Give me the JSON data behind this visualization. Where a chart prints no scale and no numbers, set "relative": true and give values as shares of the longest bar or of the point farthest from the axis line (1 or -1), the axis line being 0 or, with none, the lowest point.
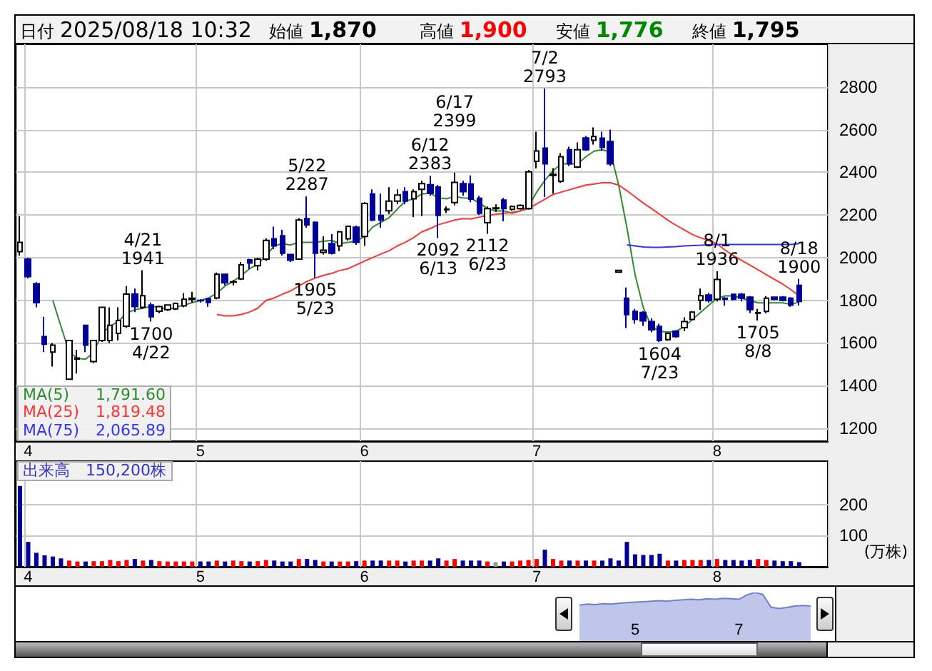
{
  "chart_data": [
    {
      "type": "candlestick",
      "categories": [
        null,
        "4",
        null,
        null,
        null,
        null,
        null,
        null,
        null,
        null,
        null,
        null,
        null,
        null,
        null,
        null,
        null,
        null,
        null,
        null,
        null,
        null,
        "5",
        null,
        null,
        null,
        null,
        null,
        null,
        null,
        null,
        null,
        null,
        null,
        null,
        null,
        null,
        null,
        null,
        null,
        null,
        null,
        "6",
        null,
        null,
        null,
        null,
        null,
        null,
        null,
        null,
        null,
        null,
        null,
        null,
        null,
        null,
        null,
        null,
        null,
        null,
        null,
        null,
        "7",
        null,
        null,
        null,
        null,
        null,
        null,
        null,
        null,
        null,
        null,
        null,
        null,
        null,
        null,
        null,
        null,
        null,
        null,
        null,
        null,
        null,
        "8",
        null,
        null,
        null,
        null,
        null,
        null,
        null,
        null,
        null,
        null
      ],
      "series": [
        {
          "ohlc": [
            [
              2028,
              2194,
              2010,
              2072
            ],
            [
              1993,
              2000,
              1903,
              1911
            ],
            [
              1878,
              1885,
              1767,
              1789
            ],
            [
              1630,
              1723,
              1557,
              1594
            ],
            [
              1557,
              1600,
              1490,
              1590
            ],
            null,
            [
              1430,
              1612,
              1428,
              1612
            ],
            [
              1525,
              1568,
              1457,
              1530
            ],
            [
              1683,
              1683,
              1557,
              1590
            ],
            [
              1513,
              1612,
              1505,
              1612
            ],
            [
              1612,
              1770,
              1605,
              1767
            ],
            [
              1612,
              1767,
              1600,
              1683
            ],
            [
              1645,
              1767,
              1612,
              1705
            ],
            [
              1679,
              1867,
              1670,
              1829
            ],
            [
              1829,
              1855,
              1745,
              1771
            ],
            [
              1767,
              1941,
              1760,
              1822
            ],
            [
              1778,
              1790,
              1700,
              1723
            ],
            [
              1749,
              1775,
              1740,
              1771
            ],
            [
              1756,
              1780,
              1750,
              1778
            ],
            [
              1760,
              1790,
              1755,
              1786
            ],
            [
              1774,
              1833,
              1767,
              1805
            ],
            [
              1805,
              1840,
              1790,
              1810
            ],
            [
              1800,
              1805,
              1790,
              1798
            ],
            [
              1807,
              1810,
              1770,
              1790
            ],
            [
              1811,
              1930,
              1805,
              1922
            ],
            [
              1922,
              1925,
              1870,
              1882
            ],
            [
              1885,
              1895,
              1870,
              1887
            ],
            [
              1900,
              1980,
              1895,
              1966
            ],
            [
              1990,
              1995,
              1945,
              1975
            ],
            [
              1962,
              2000,
              1940,
              1993
            ],
            [
              1993,
              2090,
              1985,
              2081
            ],
            [
              2088,
              2145,
              2040,
              2055
            ],
            [
              2103,
              2130,
              2010,
              2021
            ],
            [
              2015,
              2018,
              1980,
              1988
            ],
            [
              1993,
              2185,
              1990,
              2176
            ],
            [
              2183,
              2287,
              2140,
              2154
            ],
            [
              2165,
              2170,
              1905,
              2021
            ],
            [
              2025,
              2100,
              2015,
              2035
            ],
            [
              2066,
              2110,
              2015,
              2021
            ],
            [
              2055,
              2125,
              2030,
              2121
            ],
            [
              2088,
              2150,
              2080,
              2147
            ],
            [
              2143,
              2150,
              2060,
              2072
            ],
            [
              2099,
              2260,
              2055,
              2254
            ],
            [
              2298,
              2320,
              2170,
              2176
            ],
            [
              2198,
              2300,
              2140,
              2176
            ],
            [
              2220,
              2330,
              2205,
              2265
            ],
            [
              2265,
              2320,
              2250,
              2293
            ],
            [
              2309,
              2330,
              2250,
              2265
            ],
            [
              2276,
              2320,
              2190,
              2309
            ],
            [
              2320,
              2360,
              2195,
              2347
            ],
            [
              2342,
              2383,
              2290,
              2302
            ],
            [
              2331,
              2340,
              2092,
              2198
            ],
            [
              2225,
              2240,
              2210,
              2227
            ],
            [
              2258,
              2399,
              2245,
              2353
            ],
            [
              2347,
              2360,
              2290,
              2309
            ],
            [
              2345,
              2385,
              2260,
              2274
            ],
            [
              2278,
              2290,
              2200,
              2208
            ],
            [
              2164,
              2240,
              2112,
              2230
            ],
            [
              2230,
              2250,
              2215,
              2233
            ],
            [
              2270,
              2280,
              2170,
              2230
            ],
            [
              2226,
              2245,
              2220,
              2240
            ],
            [
              2230,
              2250,
              2225,
              2245
            ],
            [
              2230,
              2410,
              2225,
              2402
            ],
            [
              2451,
              2590,
              2418,
              2500
            ],
            [
              2513,
              2793,
              2285,
              2440
            ],
            [
              2385,
              2420,
              2300,
              2390
            ],
            [
              2358,
              2490,
              2350,
              2473
            ],
            [
              2506,
              2520,
              2430,
              2440
            ],
            [
              2425,
              2540,
              2420,
              2506
            ],
            [
              2561,
              2570,
              2500,
              2506
            ],
            [
              2550,
              2610,
              2530,
              2568
            ],
            [
              2560,
              2590,
              2500,
              2517
            ],
            [
              2544,
              2600,
              2430,
              2440
            ],
            [
              1932,
              1940,
              1932,
              1940
            ],
            [
              1810,
              1860,
              1670,
              1733
            ],
            [
              1748,
              1760,
              1690,
              1710
            ],
            [
              1743,
              1750,
              1680,
              1704
            ],
            [
              1700,
              1715,
              1650,
              1662
            ],
            [
              1678,
              1690,
              1604,
              1612
            ],
            [
              1616,
              1650,
              1610,
              1645
            ],
            [
              1655,
              1660,
              1625,
              1630
            ],
            [
              1672,
              1720,
              1655,
              1700
            ],
            [
              1710,
              1750,
              1708,
              1745
            ],
            [
              1800,
              1855,
              1755,
              1822
            ],
            [
              1825,
              1835,
              1790,
              1798
            ],
            [
              1805,
              1936,
              1795,
              1898
            ],
            [
              1810,
              1815,
              1775,
              1805
            ],
            [
              1828,
              1830,
              1800,
              1805
            ],
            [
              1828,
              1835,
              1795,
              1810
            ],
            [
              1815,
              1820,
              1740,
              1756
            ],
            [
              1740,
              1760,
              1705,
              1742
            ],
            [
              1748,
              1820,
              1740,
              1810
            ],
            [
              1815,
              1818,
              1800,
              1805
            ],
            [
              1815,
              1820,
              1795,
              1800
            ],
            [
              1810,
              1815,
              1770,
              1777
            ],
            [
              1870,
              1900,
              1776,
              1795
            ]
          ],
          "colors": [
            "#ffffff",
            "#000099",
            "#000099",
            "#000099",
            "#ffffff",
            null,
            "#ffffff",
            "#ffffff",
            "#000099",
            "#ffffff",
            "#ffffff",
            "#ffffff",
            "#ffffff",
            "#ffffff",
            "#000099",
            "#ffffff",
            "#000099",
            "#ffffff",
            "#ffffff",
            "#ffffff",
            "#ffffff",
            "#ffffff",
            "#000099",
            "#000099",
            "#ffffff",
            "#000099",
            "#ffffff",
            "#ffffff",
            "#000099",
            "#ffffff",
            "#ffffff",
            "#000099",
            "#000099",
            "#000099",
            "#ffffff",
            "#000099",
            "#000099",
            "#ffffff",
            "#000099",
            "#ffffff",
            "#ffffff",
            "#000099",
            "#ffffff",
            "#000099",
            "#000099",
            "#ffffff",
            "#ffffff",
            "#000099",
            "#ffffff",
            "#ffffff",
            "#000099",
            "#000099",
            "#ffffff",
            "#ffffff",
            "#000099",
            "#000099",
            "#000099",
            "#ffffff",
            "#ffffff",
            "#000099",
            "#ffffff",
            "#ffffff",
            "#ffffff",
            "#ffffff",
            "#000099",
            "#ffffff",
            "#ffffff",
            "#000099",
            "#ffffff",
            "#000099",
            "#ffffff",
            "#000099",
            "#000099",
            "#ffffff",
            "#000099",
            "#000099",
            "#000099",
            "#000099",
            "#000099",
            "#ffffff",
            "#000099",
            "#ffffff",
            "#ffffff",
            "#ffffff",
            "#000099",
            "#ffffff",
            "#000099",
            "#000099",
            "#000099",
            "#000099",
            "#ffffff",
            "#ffffff",
            "#000099",
            "#000099",
            "#000099",
            "#000099"
          ]
        },
        {
          "type": "line",
          "name": "MA(5)",
          "color": "#2e8b2e",
          "values": [
            null,
            null,
            null,
            null,
            1800,
            1678,
            1557,
            1528,
            1524,
            1557,
            1645,
            1679,
            1701,
            1740,
            1756,
            1763,
            1772,
            1767,
            1756,
            1767,
            1778,
            1789,
            1800,
            1811,
            1833,
            1867,
            1889,
            1917,
            1948,
            1970,
            2010,
            2055,
            2066,
            2059,
            2072,
            2072,
            2072,
            2077,
            2081,
            2066,
            2072,
            2077,
            2099,
            2143,
            2165,
            2187,
            2227,
            2265,
            2276,
            2298,
            2302,
            2280,
            2276,
            2287,
            2280,
            2278,
            2256,
            2230,
            2219,
            2219,
            2208,
            2219,
            2241,
            2307,
            2362,
            2407,
            2440,
            2440,
            2440,
            2473,
            2499,
            2506,
            2495,
            2340,
            2141,
            1920,
            1766,
            1677,
            1655,
            1651,
            1655,
            1677,
            1710,
            1744,
            1777,
            1810,
            1821,
            1821,
            1810,
            1799,
            1788,
            1788,
            1788,
            1788,
            1781,
            1792
          ]
        },
        {
          "type": "line",
          "name": "MA(25)",
          "color": "#ff3333",
          "values": [
            null,
            null,
            null,
            null,
            null,
            null,
            null,
            null,
            null,
            null,
            null,
            null,
            null,
            null,
            null,
            null,
            null,
            null,
            null,
            null,
            null,
            null,
            null,
            null,
            1734,
            1727,
            1727,
            1734,
            1745,
            1763,
            1800,
            1811,
            1829,
            1844,
            1867,
            1889,
            1904,
            1917,
            1926,
            1940,
            1948,
            1966,
            1984,
            2000,
            2017,
            2032,
            2055,
            2072,
            2094,
            2121,
            2136,
            2154,
            2165,
            2176,
            2183,
            2181,
            2190,
            2197,
            2203,
            2208,
            2212,
            2219,
            2230,
            2252,
            2274,
            2296,
            2307,
            2318,
            2329,
            2340,
            2345,
            2351,
            2351,
            2340,
            2314,
            2285,
            2256,
            2230,
            2203,
            2175,
            2152,
            2130,
            2108,
            2093,
            2080,
            2064,
            2035,
            2009,
            1987,
            1965,
            1943,
            1920,
            1898,
            1876,
            1850,
            1821
          ]
        },
        {
          "type": "line",
          "name": "MA(75)",
          "color": "#3333ff",
          "values": [
            null,
            null,
            null,
            null,
            null,
            null,
            null,
            null,
            null,
            null,
            null,
            null,
            null,
            null,
            null,
            null,
            null,
            null,
            null,
            null,
            null,
            null,
            null,
            null,
            null,
            null,
            null,
            null,
            null,
            null,
            null,
            null,
            null,
            null,
            null,
            null,
            null,
            null,
            null,
            null,
            null,
            null,
            null,
            null,
            null,
            null,
            null,
            null,
            null,
            null,
            null,
            null,
            null,
            null,
            null,
            null,
            null,
            null,
            null,
            null,
            null,
            null,
            null,
            null,
            null,
            null,
            null,
            null,
            null,
            null,
            null,
            null,
            null,
            null,
            2060,
            2055,
            2050,
            2048,
            2048,
            2050,
            2052,
            2055,
            2057,
            2058,
            2060,
            2062,
            2062,
            2062,
            2062,
            2062,
            2062,
            2062,
            2062,
            2062,
            2062,
            2066
          ]
        }
      ],
      "ylim": [
        1140,
        3000
      ],
      "yticks": [
        1200,
        1400,
        1600,
        1800,
        2000,
        2200,
        2400,
        2600,
        2800
      ],
      "grid": true,
      "legend": "bottom left",
      "marker": "none",
      "annotations": [
        "日付",
        "2025/08/18 10:32",
        "始値",
        "1,870",
        "高値",
        "1,900",
        "安値",
        "1,776",
        "終値",
        "1,795",
        "1,791.60",
        "1,819.48",
        "2,065.89",
        {
          "text": "4/21\n1941",
          "y": 1941
        },
        {
          "text": "1700\n4/22",
          "y": 1700
        },
        {
          "text": "5/22\n2287",
          "y": 2287
        },
        {
          "text": "1905\n5/23",
          "y": 1905
        },
        {
          "text": "6/12\n2383",
          "y": 2383
        },
        {
          "text": "6/17\n2399",
          "y": 2399
        },
        {
          "text": "2092\n6/13",
          "y": 2092
        },
        {
          "text": "2112\n6/23",
          "y": 2112
        },
        {
          "text": "7/2\n2793",
          "y": 2793
        },
        {
          "text": "1604\n7/23",
          "y": 1604
        },
        {
          "text": "8/1\n1936",
          "y": 1936
        },
        {
          "text": "1705\n8/8",
          "y": 1705
        },
        {
          "text": "8/18\n1900",
          "y": 1900
        }
      ]
    },
    {
      "type": "bar",
      "title": "出来高",
      "ylabel": "(万株)",
      "annotations": [
        "150,200株"
      ],
      "categories": [
        null,
        "4",
        null,
        null,
        null,
        null,
        null,
        null,
        null,
        null,
        null,
        null,
        null,
        null,
        null,
        null,
        null,
        null,
        null,
        null,
        null,
        null,
        "5",
        null,
        null,
        null,
        null,
        null,
        null,
        null,
        null,
        null,
        null,
        null,
        null,
        null,
        null,
        null,
        null,
        null,
        null,
        null,
        "6",
        null,
        null,
        null,
        null,
        null,
        null,
        null,
        null,
        null,
        null,
        null,
        null,
        null,
        null,
        null,
        null,
        null,
        null,
        null,
        null,
        "7",
        null,
        null,
        null,
        null,
        null,
        null,
        null,
        null,
        null,
        null,
        null,
        null,
        null,
        null,
        null,
        null,
        null,
        null,
        null,
        null,
        null,
        "8",
        null,
        null,
        null,
        null,
        null,
        null,
        null,
        null,
        null,
        null
      ],
      "values": [
        260,
        80,
        45,
        37,
        33,
        27,
        20,
        17,
        17,
        18,
        18,
        22,
        18,
        22,
        25,
        20,
        22,
        18,
        17,
        17,
        17,
        17,
        17,
        17,
        20,
        17,
        20,
        18,
        17,
        18,
        22,
        20,
        17,
        17,
        25,
        25,
        22,
        17,
        17,
        17,
        17,
        18,
        20,
        20,
        20,
        20,
        20,
        17,
        20,
        20,
        20,
        27,
        20,
        25,
        20,
        20,
        20,
        17,
        15,
        17,
        17,
        20,
        22,
        25,
        55,
        25,
        20,
        20,
        20,
        20,
        20,
        20,
        27,
        20,
        80,
        40,
        38,
        38,
        42,
        20,
        20,
        22,
        22,
        22,
        22,
        25,
        22,
        22,
        20,
        22,
        25,
        22,
        20,
        18,
        18,
        15
      ],
      "colors": [
        "#000099",
        "#000099",
        "#000099",
        "#000099",
        "#000099",
        "#000099",
        "#ff0000",
        "#ff0000",
        "#000099",
        "#ff0000",
        "#ff0000",
        "#ff0000",
        "#ff0000",
        "#ff0000",
        "#000099",
        "#ff0000",
        "#000099",
        "#ff0000",
        "#ff0000",
        "#ff0000",
        "#ff0000",
        "#ff0000",
        "#000099",
        "#000099",
        "#ff0000",
        "#000099",
        "#ff0000",
        "#ff0000",
        "#000099",
        "#ff0000",
        "#ff0000",
        "#000099",
        "#000099",
        "#000099",
        "#ff0000",
        "#000099",
        "#000099",
        "#ff0000",
        "#000099",
        "#ff0000",
        "#ff0000",
        "#000099",
        "#ff0000",
        "#000099",
        "#000099",
        "#ff0000",
        "#ff0000",
        "#000099",
        "#ff0000",
        "#ff0000",
        "#000099",
        "#000099",
        "#ff0000",
        "#ff0000",
        "#000099",
        "#000099",
        "#000099",
        "#ff0000",
        "#999999",
        "#000099",
        "#ff0000",
        "#ff0000",
        "#ff0000",
        "#ff0000",
        "#000099",
        "#ff0000",
        "#ff0000",
        "#000099",
        "#ff0000",
        "#000099",
        "#ff0000",
        "#000099",
        "#000099",
        "#000099",
        "#000099",
        "#000099",
        "#000099",
        "#000099",
        "#000099",
        "#ff0000",
        "#000099",
        "#ff0000",
        "#ff0000",
        "#ff0000",
        "#000099",
        "#ff0000",
        "#000099",
        "#000099",
        "#000099",
        "#000099",
        "#ff0000",
        "#ff0000",
        "#000099",
        "#000099",
        "#000099",
        "#000099"
      ],
      "ylim": [
        0,
        340
      ],
      "yticks": [
        100,
        200
      ],
      "grid": true
    },
    {
      "type": "area",
      "relative": true,
      "color": "#7080d0",
      "categories": [
        null,
        null,
        null,
        null,
        null,
        null,
        null,
        "5",
        null,
        null,
        null,
        null,
        null,
        null,
        null,
        null,
        null,
        null,
        null,
        null,
        "7",
        null,
        null,
        null,
        null,
        null,
        null,
        null,
        null,
        null
      ],
      "values": [
        0.74,
        0.76,
        0.75,
        0.77,
        0.76,
        0.78,
        0.79,
        0.8,
        0.81,
        0.82,
        0.83,
        0.82,
        0.84,
        0.85,
        0.86,
        0.85,
        0.87,
        0.86,
        0.88,
        0.87,
        0.86,
        0.95,
        1,
        0.96,
        0.7,
        0.67,
        0.69,
        0.72,
        0.73,
        0.72
      ]
    }
  ]
}
